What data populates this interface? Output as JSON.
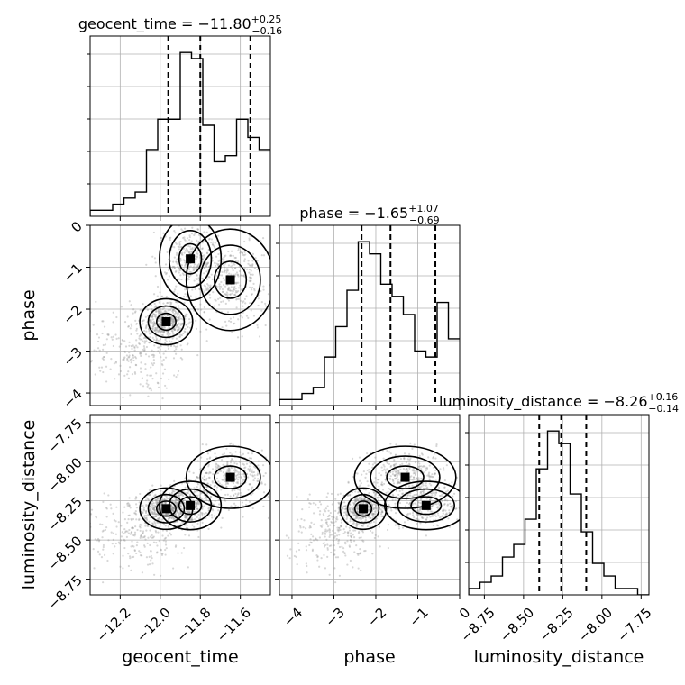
{
  "chart_data": {
    "type": "corner",
    "parameters": [
      "geocent_time",
      "phase",
      "luminosity_distance"
    ],
    "titles": [
      {
        "param": "geocent_time",
        "prefix": "geocent_time = −11.80",
        "plus": "+0.25",
        "minus": "−0.16"
      },
      {
        "param": "phase",
        "prefix": "phase = −1.65",
        "plus": "+1.07",
        "minus": "−0.69"
      },
      {
        "param": "luminosity_distance",
        "prefix": "luminosity_distance = −8.26",
        "plus": "+0.16",
        "minus": "−0.14"
      }
    ],
    "ranges": {
      "geocent_time": [
        -12.35,
        -11.45
      ],
      "phase": [
        -4.3,
        0.0
      ],
      "luminosity_distance": [
        -8.85,
        -7.7
      ]
    },
    "ticks": {
      "geocent_time": {
        "values": [
          -12.2,
          -12.0,
          -11.8,
          -11.6
        ],
        "labels": [
          "−12.2",
          "−12.0",
          "−11.8",
          "−11.6"
        ]
      },
      "phase": {
        "values": [
          -4,
          -3,
          -2,
          -1,
          0
        ],
        "labels": [
          "−4",
          "−3",
          "−2",
          "−1",
          "0"
        ]
      },
      "luminosity_distance": {
        "values": [
          -8.75,
          -8.5,
          -8.25,
          -8.0,
          -7.75
        ],
        "labels": [
          "−8.75",
          "−8.50",
          "−8.25",
          "−8.00",
          "−7.75"
        ]
      }
    },
    "quantiles": {
      "geocent_time": [
        -11.96,
        -11.8,
        -11.55
      ],
      "phase": [
        -2.34,
        -1.65,
        -0.58
      ],
      "luminosity_distance": [
        -8.4,
        -8.26,
        -8.1
      ]
    },
    "histograms": {
      "geocent_time": [
        1,
        1,
        2,
        3,
        4,
        11,
        16,
        16,
        27,
        26,
        15,
        9,
        10,
        16,
        13,
        11
      ],
      "phase": [
        1,
        1,
        2,
        3,
        8,
        13,
        19,
        27,
        25,
        20,
        18,
        15,
        9,
        8,
        17,
        11
      ],
      "luminosity_distance": [
        1,
        2,
        3,
        6,
        8,
        12,
        20,
        26,
        24,
        16,
        10,
        5,
        3,
        1,
        1,
        0
      ]
    },
    "grid": true
  },
  "labels": {
    "geocent_time": "geocent_time",
    "phase": "phase",
    "luminosity_distance": "luminosity_distance"
  }
}
